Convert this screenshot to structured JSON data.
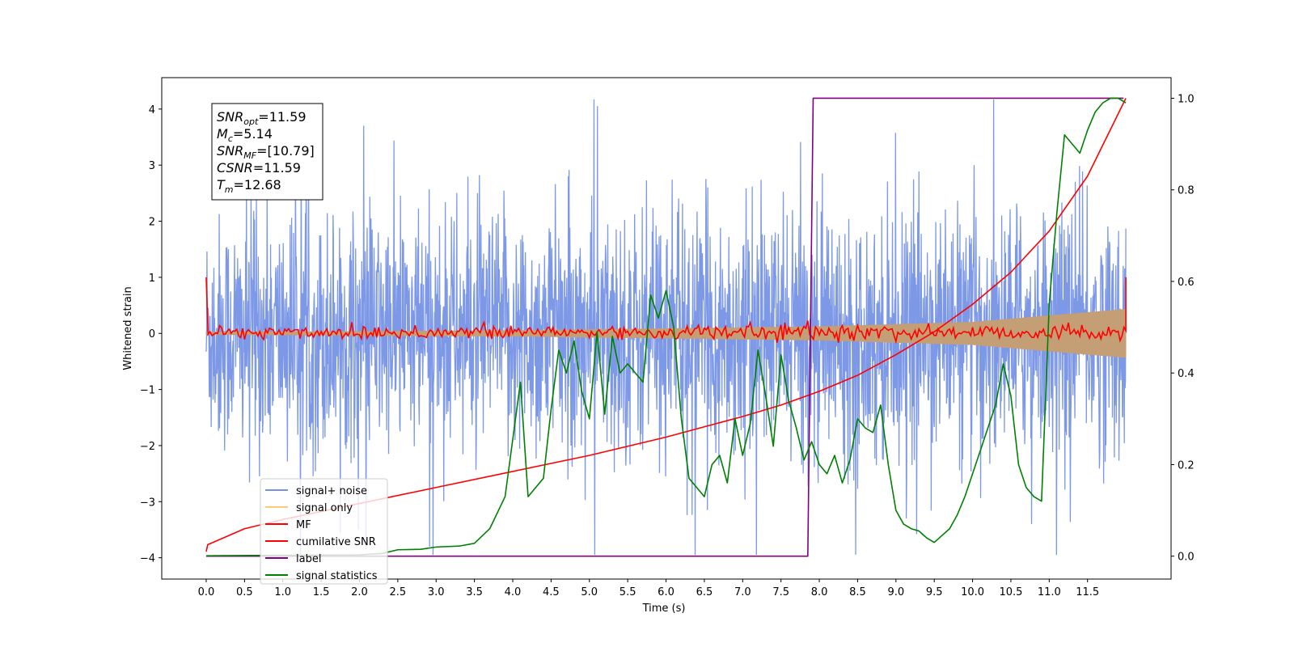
{
  "chart_data": {
    "type": "line",
    "xlabel": "Time (s)",
    "ylabel": "Whitened strain",
    "xlim": [
      -0.58,
      12.59
    ],
    "ylim": [
      -4.38,
      4.56
    ],
    "y2lim": [
      -0.05,
      1.045
    ],
    "x_ticks": [
      "0.0",
      "0.5",
      "1.0",
      "1.5",
      "2.0",
      "2.5",
      "3.0",
      "3.5",
      "4.0",
      "4.5",
      "5.0",
      "5.5",
      "6.0",
      "6.5",
      "7.0",
      "7.5",
      "8.0",
      "8.5",
      "9.0",
      "9.5",
      "10.0",
      "10.5",
      "11.0",
      "11.5"
    ],
    "y_ticks": [
      "4",
      "3",
      "2",
      "1",
      "0",
      "−1",
      "−2",
      "−3",
      "−4"
    ],
    "y2_ticks": [
      "1.0",
      "0.8",
      "0.6",
      "0.4",
      "0.2",
      "0.0"
    ],
    "annotation": {
      "lines": [
        {
          "label": "SNR",
          "sub": "opt",
          "value": "=11.59"
        },
        {
          "label": "M",
          "sub": "c",
          "value": "=5.14"
        },
        {
          "label": "SNR",
          "sub": "MF",
          "value": "=[10.79]"
        },
        {
          "label": "CSNR",
          "sub": "",
          "value": "=11.59"
        },
        {
          "label": "T",
          "sub": "m",
          "value": "=12.68"
        }
      ]
    },
    "legend": {
      "position": "lower-left",
      "entries": [
        {
          "label": "signal+ noise",
          "color": "#7592e5"
        },
        {
          "label": "signal only",
          "color": "#ffc87a"
        },
        {
          "label": "MF",
          "color": "#ff0000"
        },
        {
          "label": "cumilative SNR",
          "color": "#ff0000"
        },
        {
          "label": "label",
          "color": "#800080"
        },
        {
          "label": "signal statistics",
          "color": "#008000"
        }
      ]
    },
    "series": [
      {
        "name": "signal+ noise",
        "axis": "left",
        "kind": "noise",
        "x_range": [
          0,
          12.0
        ],
        "amplitude_range": [
          -3.95,
          4.17
        ],
        "color": "#7592e5"
      },
      {
        "name": "signal only",
        "axis": "left",
        "kind": "envelope",
        "x": [
          0,
          4,
          8,
          10,
          12.0
        ],
        "amplitude": [
          0.02,
          0.05,
          0.12,
          0.2,
          0.43
        ],
        "color": "#c49e75"
      },
      {
        "name": "MF",
        "axis": "left",
        "kind": "noise",
        "x_range": [
          0,
          12.0
        ],
        "start_value": 1.0,
        "end_value": 1.0,
        "amplitude": 0.12,
        "color": "#ff0000"
      },
      {
        "name": "cumilative SNR",
        "axis": "right",
        "x": [
          0.0,
          0.02,
          0.5,
          1,
          2,
          3,
          4,
          5,
          6,
          7,
          7.5,
          8,
          8.5,
          9,
          9.5,
          10,
          10.5,
          11,
          11.5,
          12.0
        ],
        "values": [
          0.01,
          0.025,
          0.06,
          0.08,
          0.115,
          0.15,
          0.185,
          0.22,
          0.26,
          0.305,
          0.33,
          0.36,
          0.395,
          0.44,
          0.49,
          0.55,
          0.62,
          0.71,
          0.83,
          1.0
        ],
        "color": "#ff0000"
      },
      {
        "name": "label",
        "axis": "right",
        "x": [
          0.0,
          7.85,
          7.92,
          11.97
        ],
        "values": [
          0.0,
          0.0,
          1.0,
          1.0
        ],
        "color": "#800080"
      },
      {
        "name": "signal statistics",
        "axis": "right",
        "x": [
          0.0,
          1.0,
          2.0,
          2.3,
          2.5,
          2.8,
          3.0,
          3.3,
          3.5,
          3.7,
          3.9,
          4.1,
          4.2,
          4.3,
          4.4,
          4.5,
          4.6,
          4.7,
          4.8,
          4.9,
          5.0,
          5.1,
          5.2,
          5.3,
          5.4,
          5.5,
          5.6,
          5.7,
          5.8,
          5.9,
          6.0,
          6.1,
          6.2,
          6.3,
          6.4,
          6.5,
          6.6,
          6.7,
          6.8,
          6.9,
          7.0,
          7.1,
          7.2,
          7.3,
          7.4,
          7.5,
          7.6,
          7.7,
          7.8,
          7.9,
          8.0,
          8.1,
          8.2,
          8.3,
          8.4,
          8.5,
          8.6,
          8.7,
          8.8,
          8.9,
          9.0,
          9.1,
          9.2,
          9.3,
          9.4,
          9.5,
          9.6,
          9.7,
          9.8,
          9.9,
          10.0,
          10.1,
          10.2,
          10.3,
          10.4,
          10.5,
          10.6,
          10.7,
          10.8,
          10.9,
          11.0,
          11.1,
          11.2,
          11.3,
          11.4,
          11.5,
          11.6,
          11.7,
          11.8,
          11.9,
          12.0
        ],
        "values": [
          0.001,
          0.002,
          0.003,
          0.006,
          0.014,
          0.015,
          0.02,
          0.022,
          0.028,
          0.06,
          0.13,
          0.38,
          0.13,
          0.15,
          0.17,
          0.32,
          0.45,
          0.4,
          0.47,
          0.36,
          0.3,
          0.49,
          0.31,
          0.48,
          0.4,
          0.42,
          0.4,
          0.38,
          0.57,
          0.52,
          0.58,
          0.5,
          0.3,
          0.17,
          0.15,
          0.13,
          0.2,
          0.22,
          0.16,
          0.3,
          0.22,
          0.29,
          0.45,
          0.35,
          0.24,
          0.44,
          0.34,
          0.28,
          0.21,
          0.25,
          0.2,
          0.18,
          0.22,
          0.16,
          0.21,
          0.3,
          0.28,
          0.27,
          0.33,
          0.2,
          0.1,
          0.07,
          0.06,
          0.055,
          0.04,
          0.03,
          0.045,
          0.06,
          0.09,
          0.13,
          0.18,
          0.23,
          0.28,
          0.33,
          0.42,
          0.35,
          0.2,
          0.15,
          0.13,
          0.12,
          0.55,
          0.75,
          0.92,
          0.9,
          0.88,
          0.93,
          0.97,
          0.99,
          1.0,
          1.0,
          0.99
        ],
        "color": "#008000"
      }
    ]
  }
}
